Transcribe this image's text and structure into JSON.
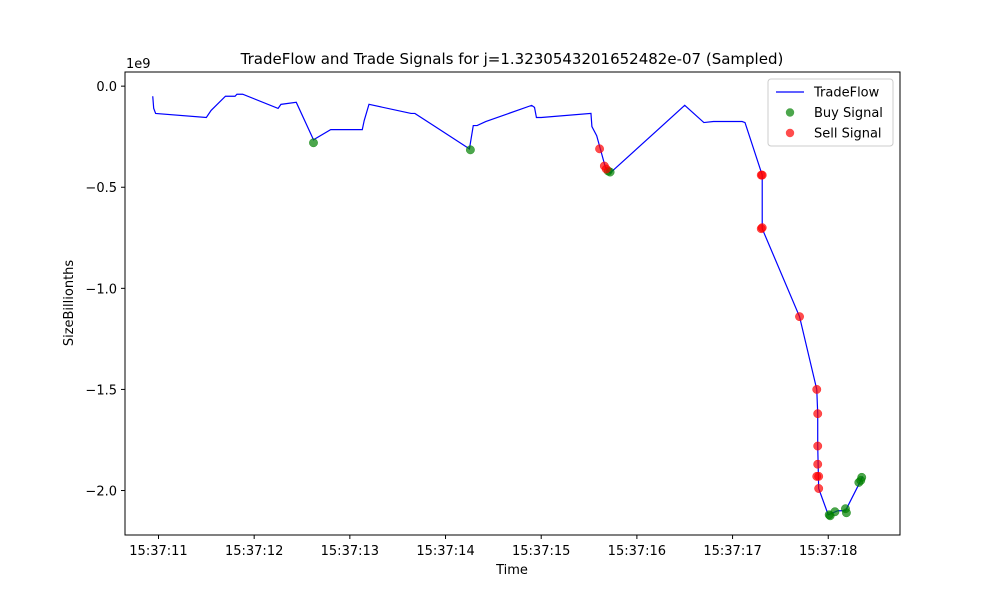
{
  "chart_data": {
    "type": "line",
    "title": "TradeFlow and Trade Signals for j=1.3230543201652482e-07 (Sampled)",
    "xlabel": "Time",
    "ylabel": "SizeBillionths",
    "y_multiplier_label": "1e9",
    "y_scale": 1000000000,
    "xlim": [
      "15:37:10.650",
      "15:37:18.750"
    ],
    "ylim": [
      -2.22,
      0.07
    ],
    "x_ticks": [
      "15:37:11",
      "15:37:12",
      "15:37:13",
      "15:37:14",
      "15:37:15",
      "15:37:16",
      "15:37:17",
      "15:37:18"
    ],
    "y_ticks": [
      {
        "value": 0.0,
        "label": "0.0"
      },
      {
        "value": -0.5,
        "label": "−0.5"
      },
      {
        "value": -1.0,
        "label": "−1.0"
      },
      {
        "value": -1.5,
        "label": "−1.5"
      },
      {
        "value": -2.0,
        "label": "−2.0"
      }
    ],
    "grid": false,
    "legend_position": "upper right",
    "series": [
      {
        "name": "TradeFlow",
        "kind": "line",
        "color": "#0000ff",
        "points": [
          [
            "15:37:10.940",
            -0.05
          ],
          [
            "15:37:10.950",
            -0.11
          ],
          [
            "15:37:10.970",
            -0.135
          ],
          [
            "15:37:11.500",
            -0.155
          ],
          [
            "15:37:11.550",
            -0.12
          ],
          [
            "15:37:11.700",
            -0.05
          ],
          [
            "15:37:11.800",
            -0.05
          ],
          [
            "15:37:11.820",
            -0.04
          ],
          [
            "15:37:11.880",
            -0.04
          ],
          [
            "15:37:12.250",
            -0.11
          ],
          [
            "15:37:12.280",
            -0.09
          ],
          [
            "15:37:12.440",
            -0.08
          ],
          [
            "15:37:12.620",
            -0.265
          ],
          [
            "15:37:12.800",
            -0.215
          ],
          [
            "15:37:13.130",
            -0.215
          ],
          [
            "15:37:13.150",
            -0.17
          ],
          [
            "15:37:13.200",
            -0.09
          ],
          [
            "15:37:13.640",
            -0.135
          ],
          [
            "15:37:13.680",
            -0.135
          ],
          [
            "15:37:14.250",
            -0.31
          ],
          [
            "15:37:14.290",
            -0.195
          ],
          [
            "15:37:14.330",
            -0.195
          ],
          [
            "15:37:14.420",
            -0.175
          ],
          [
            "15:37:14.900",
            -0.095
          ],
          [
            "15:37:14.930",
            -0.105
          ],
          [
            "15:37:14.950",
            -0.155
          ],
          [
            "15:37:15.000",
            -0.155
          ],
          [
            "15:37:15.520",
            -0.135
          ],
          [
            "15:37:15.530",
            -0.2
          ],
          [
            "15:37:15.580",
            -0.245
          ],
          [
            "15:37:15.670",
            -0.4
          ],
          [
            "15:37:15.700",
            -0.42
          ],
          [
            "15:37:15.720",
            -0.43
          ],
          [
            "15:37:16.500",
            -0.095
          ],
          [
            "15:37:16.700",
            -0.18
          ],
          [
            "15:37:16.800",
            -0.175
          ],
          [
            "15:37:17.100",
            -0.175
          ],
          [
            "15:37:17.130",
            -0.18
          ],
          [
            "15:37:17.310",
            -0.44
          ],
          [
            "15:37:17.310",
            -0.705
          ],
          [
            "15:37:17.700",
            -1.14
          ],
          [
            "15:37:17.880",
            -1.5
          ],
          [
            "15:37:17.890",
            -1.62
          ],
          [
            "15:37:17.890",
            -1.78
          ],
          [
            "15:37:17.900",
            -1.99
          ],
          [
            "15:37:18.000",
            -2.12
          ],
          [
            "15:37:18.100",
            -2.1
          ],
          [
            "15:37:18.180",
            -2.1
          ],
          [
            "15:37:18.330",
            -1.96
          ],
          [
            "15:37:18.360",
            -1.93
          ]
        ]
      },
      {
        "name": "Buy Signal",
        "kind": "scatter",
        "color": "#008000",
        "points": [
          [
            "15:37:12.620",
            -0.28
          ],
          [
            "15:37:14.260",
            -0.315
          ],
          [
            "15:37:15.700",
            -0.42
          ],
          [
            "15:37:15.720",
            -0.425
          ],
          [
            "15:37:18.010",
            -2.12
          ],
          [
            "15:37:18.020",
            -2.125
          ],
          [
            "15:37:18.070",
            -2.105
          ],
          [
            "15:37:18.180",
            -2.09
          ],
          [
            "15:37:18.190",
            -2.11
          ],
          [
            "15:37:18.320",
            -1.96
          ],
          [
            "15:37:18.340",
            -1.95
          ],
          [
            "15:37:18.350",
            -1.935
          ]
        ]
      },
      {
        "name": "Sell Signal",
        "kind": "scatter",
        "color": "#ff0000",
        "points": [
          [
            "15:37:15.610",
            -0.31
          ],
          [
            "15:37:15.660",
            -0.395
          ],
          [
            "15:37:15.680",
            -0.41
          ],
          [
            "15:37:17.300",
            -0.44
          ],
          [
            "15:37:17.310",
            -0.44
          ],
          [
            "15:37:17.300",
            -0.705
          ],
          [
            "15:37:17.310",
            -0.7
          ],
          [
            "15:37:17.700",
            -1.14
          ],
          [
            "15:37:17.880",
            -1.5
          ],
          [
            "15:37:17.890",
            -1.62
          ],
          [
            "15:37:17.890",
            -1.78
          ],
          [
            "15:37:17.890",
            -1.87
          ],
          [
            "15:37:17.880",
            -1.93
          ],
          [
            "15:37:17.900",
            -1.93
          ],
          [
            "15:37:17.900",
            -1.99
          ]
        ]
      }
    ]
  }
}
